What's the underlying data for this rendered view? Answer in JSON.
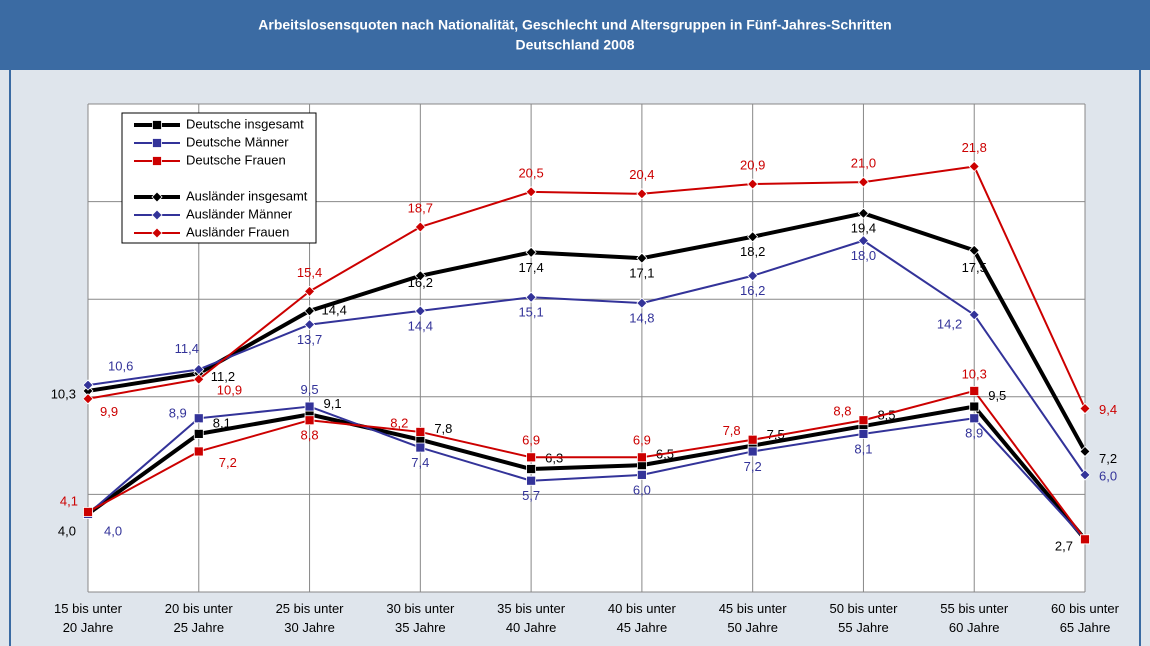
{
  "chart_data": {
    "type": "line",
    "title": "Arbeitslosensquoten nach Nationalität, Geschlecht und Altersgruppen in Fünf-Jahres-Schritten",
    "subtitle": "Deutschland 2008",
    "categories": [
      "15 bis unter\n20 Jahre",
      "20 bis unter\n25 Jahre",
      "25 bis unter\n30 Jahre",
      "30 bis unter\n35 Jahre",
      "35 bis unter\n40 Jahre",
      "40 bis unter\n45 Jahre",
      "45 bis unter\n50 Jahre",
      "50 bis unter\n55 Jahre",
      "55 bis unter\n60 Jahre",
      "60 bis unter\n65 Jahre"
    ],
    "ylim": [
      0,
      25
    ],
    "yticks": [
      0,
      5,
      10,
      15,
      20,
      25
    ],
    "grid": true,
    "legend": "upper left",
    "series": [
      {
        "name": "Deutsche insgesamt",
        "color": "#000000",
        "marker": "square",
        "values": [
          4.0,
          8.1,
          9.1,
          7.8,
          6.3,
          6.5,
          7.5,
          8.5,
          9.5,
          2.7
        ],
        "value_labels": [
          "4,0",
          "8,1",
          "9,1",
          "7,8",
          "6,3",
          "6,5",
          "7,5",
          "8,5",
          "9,5",
          "2,7"
        ]
      },
      {
        "name": "Deutsche Männer",
        "color": "#333399",
        "marker": "square",
        "values": [
          4.0,
          8.9,
          9.5,
          7.4,
          5.7,
          6.0,
          7.2,
          8.1,
          8.9,
          2.7
        ],
        "value_labels": [
          "4,0",
          "8,9",
          "9,5",
          "7,4",
          "5,7",
          "6,0",
          "7,2",
          "8,1",
          "8,9",
          null
        ]
      },
      {
        "name": "Deutsche Frauen",
        "color": "#cc0000",
        "marker": "square",
        "values": [
          4.1,
          7.2,
          8.8,
          8.2,
          6.9,
          6.9,
          7.8,
          8.8,
          10.3,
          2.7
        ],
        "value_labels": [
          "4,1",
          "7,2",
          "8,8",
          "8,2",
          "6,9",
          "6,9",
          "7,8",
          "8,8",
          "10,3",
          null
        ]
      },
      {
        "name": "Ausländer insgesamt",
        "color": "#000000",
        "marker": "diamond",
        "values": [
          10.3,
          11.2,
          14.4,
          16.2,
          17.4,
          17.1,
          18.2,
          19.4,
          17.5,
          7.2
        ],
        "value_labels": [
          "10,3",
          "11,2",
          "14,4",
          "16,2",
          "17,4",
          "17,1",
          "18,2",
          "19,4",
          "17,5",
          "7,2"
        ]
      },
      {
        "name": "Ausländer Männer",
        "color": "#333399",
        "marker": "diamond",
        "values": [
          10.6,
          11.4,
          13.7,
          14.4,
          15.1,
          14.8,
          16.2,
          18.0,
          14.2,
          6.0
        ],
        "value_labels": [
          "10,6",
          "11,4",
          "13,7",
          "14,4",
          "15,1",
          "14,8",
          "16,2",
          "18,0",
          "14,2",
          "6,0"
        ]
      },
      {
        "name": "Ausländer Frauen",
        "color": "#cc0000",
        "marker": "diamond",
        "values": [
          9.9,
          10.9,
          15.4,
          18.7,
          20.5,
          20.4,
          20.9,
          21.0,
          21.8,
          9.4
        ],
        "value_labels": [
          "9,9",
          "10,9",
          "15,4",
          "18,7",
          "20,5",
          "20,4",
          "20,9",
          "21,0",
          "21,8",
          "9,4"
        ]
      }
    ]
  }
}
